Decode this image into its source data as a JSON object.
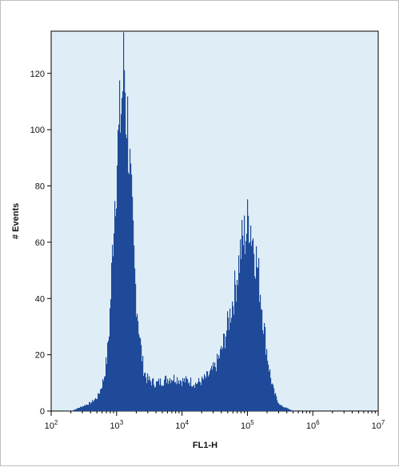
{
  "chart_data": {
    "type": "histogram",
    "title": "",
    "xlabel": "FL1-H",
    "ylabel": "# Events",
    "x_scale": "log",
    "xlim": [
      100,
      10000000
    ],
    "ylim": [
      0,
      135
    ],
    "x_ticks": [
      {
        "value": 100,
        "base": "10",
        "exp": "2"
      },
      {
        "value": 1000,
        "base": "10",
        "exp": "3"
      },
      {
        "value": 10000,
        "base": "10",
        "exp": "4"
      },
      {
        "value": 100000,
        "base": "10",
        "exp": "5"
      },
      {
        "value": 1000000,
        "base": "10",
        "exp": "6"
      },
      {
        "value": 10000000,
        "base": "10",
        "exp": "7"
      }
    ],
    "y_ticks": [
      0,
      20,
      40,
      60,
      80,
      100,
      120
    ],
    "grid": false,
    "fill_color": "#1f4a99",
    "background_color": "#dfeef6",
    "series": [
      {
        "points": [
          [
            100,
            0
          ],
          [
            200,
            0
          ],
          [
            251,
            1
          ],
          [
            316,
            2
          ],
          [
            398,
            3
          ],
          [
            501,
            5
          ],
          [
            562,
            8
          ],
          [
            631,
            12
          ],
          [
            708,
            20
          ],
          [
            759,
            30
          ],
          [
            813,
            45
          ],
          [
            851,
            58
          ],
          [
            891,
            70
          ],
          [
            933,
            80
          ],
          [
            977,
            88
          ],
          [
            1023,
            95
          ],
          [
            1072,
            100
          ],
          [
            1122,
            108
          ],
          [
            1175,
            112
          ],
          [
            1230,
            120
          ],
          [
            1259,
            123
          ],
          [
            1288,
            128
          ],
          [
            1318,
            122
          ],
          [
            1349,
            115
          ],
          [
            1380,
            108
          ],
          [
            1413,
            110
          ],
          [
            1479,
            102
          ],
          [
            1549,
            92
          ],
          [
            1622,
            80
          ],
          [
            1738,
            65
          ],
          [
            1862,
            50
          ],
          [
            1995,
            40
          ],
          [
            2138,
            32
          ],
          [
            2291,
            24
          ],
          [
            2512,
            16
          ],
          [
            2818,
            12
          ],
          [
            3162,
            11
          ],
          [
            3981,
            10
          ],
          [
            5012,
            11
          ],
          [
            6310,
            12
          ],
          [
            7943,
            12
          ],
          [
            10000,
            11
          ],
          [
            12589,
            11
          ],
          [
            15849,
            10
          ],
          [
            19953,
            11
          ],
          [
            25119,
            13
          ],
          [
            31623,
            16
          ],
          [
            39811,
            22
          ],
          [
            50119,
            32
          ],
          [
            63096,
            44
          ],
          [
            70795,
            52
          ],
          [
            79433,
            60
          ],
          [
            89125,
            64
          ],
          [
            100000,
            68
          ],
          [
            104713,
            72
          ],
          [
            112202,
            67
          ],
          [
            125893,
            60
          ],
          [
            141254,
            52
          ],
          [
            158489,
            42
          ],
          [
            177828,
            30
          ],
          [
            199526,
            20
          ],
          [
            223872,
            12
          ],
          [
            251189,
            7
          ],
          [
            281838,
            4
          ],
          [
            316228,
            2
          ],
          [
            398107,
            1
          ],
          [
            501187,
            0
          ],
          [
            1000000,
            0
          ],
          [
            10000000,
            0
          ]
        ]
      }
    ]
  }
}
